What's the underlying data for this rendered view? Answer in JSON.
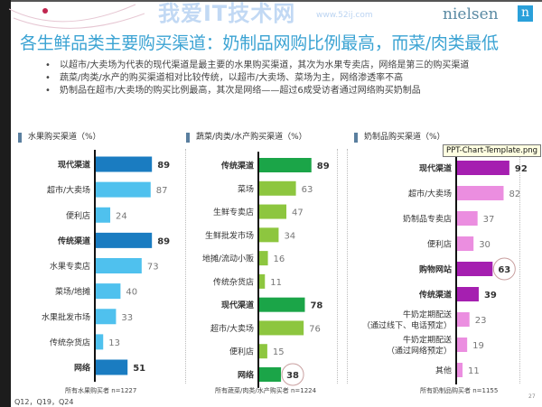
{
  "logo": {
    "text": "nielsen",
    "mark": "n"
  },
  "title": "各生鲜品类主要购买渠道：奶制品网购比例最高，而菜/肉类最低",
  "bullets": [
    "以超市/大卖场为代表的现代渠道是最主要的水果购买渠道，其次为水果专卖店，网络是第三的购买渠道",
    "蔬菜/肉类/水产的购买渠道相对比较传统，以超市/大卖场、菜场为主，网络渗透率不高",
    "奶制品在超市/大卖场的购买比例最高，其次是网络——超过6成受访者通过网络购买奶制品"
  ],
  "chart_data": [
    {
      "type": "bar",
      "orientation": "horizontal",
      "title": "水果购买渠道（%）",
      "categories": [
        "现代渠道",
        "超市/大卖场",
        "便利店",
        "传统渠道",
        "水果专卖店",
        "菜场/地摊",
        "水果批发市场",
        "传统杂货店",
        "网络"
      ],
      "values": [
        89,
        87,
        24,
        89,
        73,
        40,
        33,
        13,
        51
      ],
      "highlight": [
        true,
        false,
        false,
        true,
        false,
        false,
        false,
        false,
        true
      ],
      "colors": {
        "dark": "#1a7cc1",
        "light": "#4fc1ee"
      },
      "note": "所有水果购买者 n=1227"
    },
    {
      "type": "bar",
      "orientation": "horizontal",
      "title": "蔬菜/肉类/水产购买渠道（%）",
      "categories": [
        "传统渠道",
        "菜场",
        "生鲜专卖店",
        "生鲜批发市场",
        "地摊/流动小贩",
        "传统杂货店",
        "现代渠道",
        "超市/大卖场",
        "便利店",
        "网络"
      ],
      "values": [
        89,
        63,
        47,
        34,
        16,
        11,
        78,
        76,
        15,
        38
      ],
      "highlight": [
        true,
        false,
        false,
        false,
        false,
        false,
        true,
        false,
        false,
        true
      ],
      "circled": [
        false,
        false,
        false,
        false,
        false,
        false,
        false,
        false,
        false,
        true
      ],
      "colors": {
        "dark": "#1ba548",
        "light": "#8dc63f"
      },
      "note": "所有蔬菜/肉类/水产购买者 n=1224"
    },
    {
      "type": "bar",
      "orientation": "horizontal",
      "title": "奶制品购买渠道（%）",
      "categories": [
        "现代渠道",
        "超市/大卖场",
        "奶制品专卖店",
        "便利店",
        "购物网站",
        "传统渠道",
        "牛奶定期配送\n（通过线下、电话预定）",
        "牛奶定期配送\n（通过网络预定）",
        "其他"
      ],
      "values": [
        92,
        82,
        37,
        30,
        63,
        39,
        23,
        19,
        11
      ],
      "highlight": [
        true,
        false,
        false,
        false,
        true,
        true,
        false,
        false,
        false
      ],
      "circled": [
        false,
        false,
        false,
        false,
        true,
        false,
        false,
        false,
        false
      ],
      "colors": {
        "dark": "#a51fb0",
        "light": "#eb8ee0"
      },
      "note": "所有奶制品购买者 n=1155"
    }
  ],
  "questions": "Q12，Q19，Q24",
  "page_number": "27",
  "tooltip": "PPT-Chart-Template.png",
  "watermark": {
    "text": "我爱IT技术网",
    "url": "www.52ij.com"
  }
}
